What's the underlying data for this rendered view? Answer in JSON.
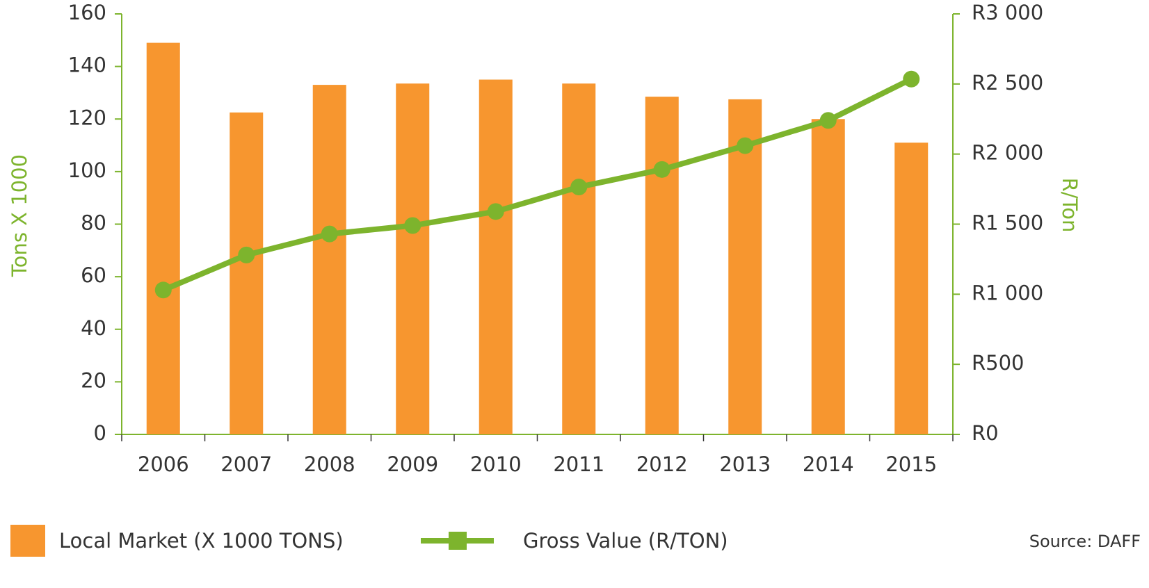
{
  "chart_data": {
    "type": "bar_line",
    "categories": [
      "2006",
      "2007",
      "2008",
      "2009",
      "2010",
      "2011",
      "2012",
      "2013",
      "2014",
      "2015"
    ],
    "series": [
      {
        "name": "Local Market (X 1000 TONS)",
        "type": "bar",
        "color": "#f7962f",
        "values": [
          149,
          122.5,
          133,
          133.5,
          135,
          133.5,
          128.5,
          127.5,
          120,
          111
        ]
      },
      {
        "name": "Gross Value (R/TON)",
        "type": "line",
        "axis": "y2",
        "color": "#7db42d",
        "values": [
          1030,
          1280,
          1430,
          1490,
          1590,
          1765,
          1890,
          2060,
          2240,
          2535
        ]
      }
    ],
    "ylabel": "Tons X 1000",
    "y2label": "R/Ton",
    "ylim": [
      0,
      160
    ],
    "yticks": [
      0,
      20,
      40,
      60,
      80,
      100,
      120,
      140,
      160
    ],
    "y2lim": [
      0,
      3000
    ],
    "y2ticks": [
      {
        "value": 0,
        "label": "R0"
      },
      {
        "value": 500,
        "label": "R500"
      },
      {
        "value": 1000,
        "label": "R1 000"
      },
      {
        "value": 1500,
        "label": "R1 500"
      },
      {
        "value": 2000,
        "label": "R2 000"
      },
      {
        "value": 2500,
        "label": "R2 500"
      },
      {
        "value": 3000,
        "label": "R3 000"
      }
    ],
    "axis_color": "#7db42d",
    "source": "Source: DAFF"
  }
}
